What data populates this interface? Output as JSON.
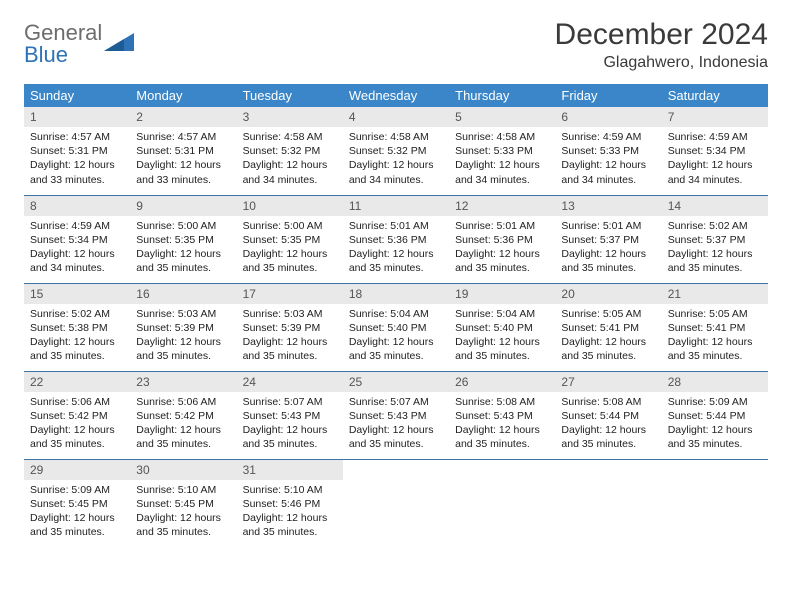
{
  "brand": {
    "general": "General",
    "blue": "Blue"
  },
  "title": "December 2024",
  "location": "Glagahwero, Indonesia",
  "colors": {
    "header_bg": "#3a86c8",
    "header_fg": "#ffffff",
    "row_divider": "#3a75a8",
    "daynum_bg": "#e9e9e9",
    "logo_gray": "#6d6d6d",
    "logo_blue": "#2e72b8"
  },
  "weekdays": [
    "Sunday",
    "Monday",
    "Tuesday",
    "Wednesday",
    "Thursday",
    "Friday",
    "Saturday"
  ],
  "weeks": [
    [
      {
        "n": 1,
        "sr": "4:57 AM",
        "ss": "5:31 PM",
        "dl": "12 hours and 33 minutes."
      },
      {
        "n": 2,
        "sr": "4:57 AM",
        "ss": "5:31 PM",
        "dl": "12 hours and 33 minutes."
      },
      {
        "n": 3,
        "sr": "4:58 AM",
        "ss": "5:32 PM",
        "dl": "12 hours and 34 minutes."
      },
      {
        "n": 4,
        "sr": "4:58 AM",
        "ss": "5:32 PM",
        "dl": "12 hours and 34 minutes."
      },
      {
        "n": 5,
        "sr": "4:58 AM",
        "ss": "5:33 PM",
        "dl": "12 hours and 34 minutes."
      },
      {
        "n": 6,
        "sr": "4:59 AM",
        "ss": "5:33 PM",
        "dl": "12 hours and 34 minutes."
      },
      {
        "n": 7,
        "sr": "4:59 AM",
        "ss": "5:34 PM",
        "dl": "12 hours and 34 minutes."
      }
    ],
    [
      {
        "n": 8,
        "sr": "4:59 AM",
        "ss": "5:34 PM",
        "dl": "12 hours and 34 minutes."
      },
      {
        "n": 9,
        "sr": "5:00 AM",
        "ss": "5:35 PM",
        "dl": "12 hours and 35 minutes."
      },
      {
        "n": 10,
        "sr": "5:00 AM",
        "ss": "5:35 PM",
        "dl": "12 hours and 35 minutes."
      },
      {
        "n": 11,
        "sr": "5:01 AM",
        "ss": "5:36 PM",
        "dl": "12 hours and 35 minutes."
      },
      {
        "n": 12,
        "sr": "5:01 AM",
        "ss": "5:36 PM",
        "dl": "12 hours and 35 minutes."
      },
      {
        "n": 13,
        "sr": "5:01 AM",
        "ss": "5:37 PM",
        "dl": "12 hours and 35 minutes."
      },
      {
        "n": 14,
        "sr": "5:02 AM",
        "ss": "5:37 PM",
        "dl": "12 hours and 35 minutes."
      }
    ],
    [
      {
        "n": 15,
        "sr": "5:02 AM",
        "ss": "5:38 PM",
        "dl": "12 hours and 35 minutes."
      },
      {
        "n": 16,
        "sr": "5:03 AM",
        "ss": "5:39 PM",
        "dl": "12 hours and 35 minutes."
      },
      {
        "n": 17,
        "sr": "5:03 AM",
        "ss": "5:39 PM",
        "dl": "12 hours and 35 minutes."
      },
      {
        "n": 18,
        "sr": "5:04 AM",
        "ss": "5:40 PM",
        "dl": "12 hours and 35 minutes."
      },
      {
        "n": 19,
        "sr": "5:04 AM",
        "ss": "5:40 PM",
        "dl": "12 hours and 35 minutes."
      },
      {
        "n": 20,
        "sr": "5:05 AM",
        "ss": "5:41 PM",
        "dl": "12 hours and 35 minutes."
      },
      {
        "n": 21,
        "sr": "5:05 AM",
        "ss": "5:41 PM",
        "dl": "12 hours and 35 minutes."
      }
    ],
    [
      {
        "n": 22,
        "sr": "5:06 AM",
        "ss": "5:42 PM",
        "dl": "12 hours and 35 minutes."
      },
      {
        "n": 23,
        "sr": "5:06 AM",
        "ss": "5:42 PM",
        "dl": "12 hours and 35 minutes."
      },
      {
        "n": 24,
        "sr": "5:07 AM",
        "ss": "5:43 PM",
        "dl": "12 hours and 35 minutes."
      },
      {
        "n": 25,
        "sr": "5:07 AM",
        "ss": "5:43 PM",
        "dl": "12 hours and 35 minutes."
      },
      {
        "n": 26,
        "sr": "5:08 AM",
        "ss": "5:43 PM",
        "dl": "12 hours and 35 minutes."
      },
      {
        "n": 27,
        "sr": "5:08 AM",
        "ss": "5:44 PM",
        "dl": "12 hours and 35 minutes."
      },
      {
        "n": 28,
        "sr": "5:09 AM",
        "ss": "5:44 PM",
        "dl": "12 hours and 35 minutes."
      }
    ],
    [
      {
        "n": 29,
        "sr": "5:09 AM",
        "ss": "5:45 PM",
        "dl": "12 hours and 35 minutes."
      },
      {
        "n": 30,
        "sr": "5:10 AM",
        "ss": "5:45 PM",
        "dl": "12 hours and 35 minutes."
      },
      {
        "n": 31,
        "sr": "5:10 AM",
        "ss": "5:46 PM",
        "dl": "12 hours and 35 minutes."
      },
      null,
      null,
      null,
      null
    ]
  ],
  "labels": {
    "sunrise": "Sunrise:",
    "sunset": "Sunset:",
    "daylight": "Daylight:"
  }
}
